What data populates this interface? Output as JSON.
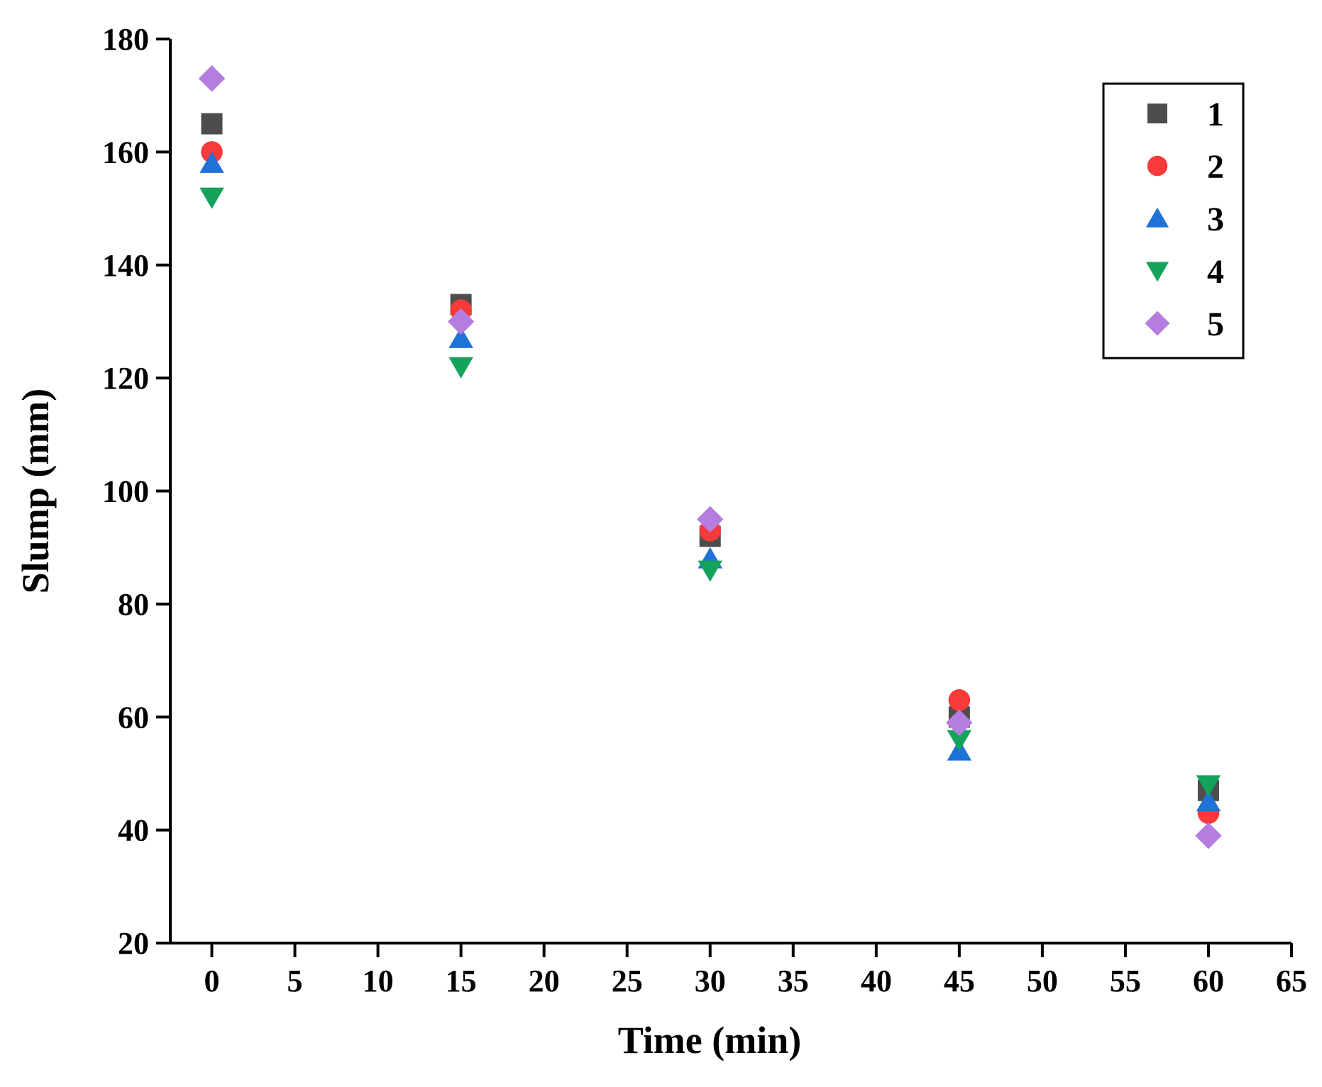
{
  "chart_data": {
    "type": "scatter",
    "title": "",
    "xlabel": "Time (min)",
    "ylabel": "Slump (mm)",
    "xlim": [
      -2.5,
      65
    ],
    "ylim": [
      20,
      180
    ],
    "x_ticks": [
      0,
      5,
      10,
      15,
      20,
      25,
      30,
      35,
      40,
      45,
      50,
      55,
      60,
      65
    ],
    "y_ticks": [
      20,
      40,
      60,
      80,
      100,
      120,
      140,
      160,
      180
    ],
    "grid": false,
    "legend_position": "top-right",
    "x": [
      0,
      15,
      30,
      45,
      60
    ],
    "series": [
      {
        "name": "1",
        "marker": "square",
        "color": "#4d4d4d",
        "values": [
          165,
          133,
          92,
          60,
          47
        ]
      },
      {
        "name": "2",
        "marker": "circle",
        "color": "#f83a3a",
        "values": [
          160,
          132,
          93,
          63,
          43
        ]
      },
      {
        "name": "3",
        "marker": "triangle-up",
        "color": "#1f72d8",
        "values": [
          158,
          127,
          88,
          54,
          45
        ]
      },
      {
        "name": "4",
        "marker": "triangle-down",
        "color": "#14a35a",
        "values": [
          152,
          122,
          86,
          56,
          48
        ]
      },
      {
        "name": "5",
        "marker": "diamond",
        "color": "#b57de0",
        "values": [
          173,
          130,
          95,
          59,
          39
        ]
      }
    ]
  }
}
